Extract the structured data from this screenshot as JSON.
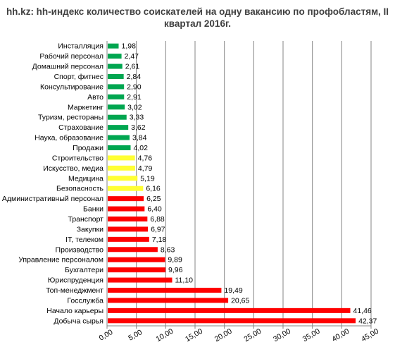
{
  "chart_data": {
    "type": "bar",
    "orientation": "horizontal",
    "title": "hh.kz: hh-индекс количество соискателей на одну вакансию по профобластям, II квартал 2016г.",
    "xlabel": "",
    "ylabel": "",
    "xlim": [
      0,
      45
    ],
    "x_ticks": [
      "0,00",
      "5,00",
      "10,00",
      "15,00",
      "20,00",
      "25,00",
      "30,00",
      "35,00",
      "40,00",
      "45,00"
    ],
    "grid": "vertical",
    "legend": "none",
    "colors": {
      "green": "#00a650",
      "yellow": "#ffff33",
      "red": "#ff0000"
    },
    "categories": [
      "Инсталляция",
      "Рабочий персонал",
      "Домашний персонал",
      "Спорт, фитнес",
      "Консультирование",
      "Авто",
      "Маркетинг",
      "Туризм, рестораны",
      "Страхование",
      "Наука, образование",
      "Продажи",
      "Строительство",
      "Искусство, медиа",
      "Медицина",
      "Безопасность",
      "Административный персонал",
      "Банки",
      "Транспорт",
      "Закупки",
      "IT, телеком",
      "Производство",
      "Управление персоналом",
      "Бухгалтери",
      "Юриспруденция",
      "Топ-менеджмент",
      "Госслужба",
      "Начало карьеры",
      "Добыча сырья"
    ],
    "values": [
      1.98,
      2.47,
      2.61,
      2.84,
      2.9,
      2.91,
      3.02,
      3.33,
      3.62,
      3.84,
      4.02,
      4.76,
      4.79,
      5.19,
      6.16,
      6.25,
      6.4,
      6.88,
      6.97,
      7.18,
      8.63,
      9.89,
      9.96,
      11.1,
      19.49,
      20.65,
      41.46,
      42.37
    ],
    "value_labels": [
      "1,98",
      "2,47",
      "2,61",
      "2,84",
      "2,90",
      "2,91",
      "3,02",
      "3,33",
      "3,62",
      "3,84",
      "4,02",
      "4,76",
      "4,79",
      "5,19",
      "6,16",
      "6,25",
      "6,40",
      "6,88",
      "6,97",
      "7,18",
      "8,63",
      "9,89",
      "9,96",
      "11,10",
      "19,49",
      "20,65",
      "41,46",
      "42,37"
    ],
    "bar_colors": [
      "green",
      "green",
      "green",
      "green",
      "green",
      "green",
      "green",
      "green",
      "green",
      "green",
      "green",
      "yellow",
      "yellow",
      "yellow",
      "yellow",
      "red",
      "red",
      "red",
      "red",
      "red",
      "red",
      "red",
      "red",
      "red",
      "red",
      "red",
      "red",
      "red"
    ]
  }
}
